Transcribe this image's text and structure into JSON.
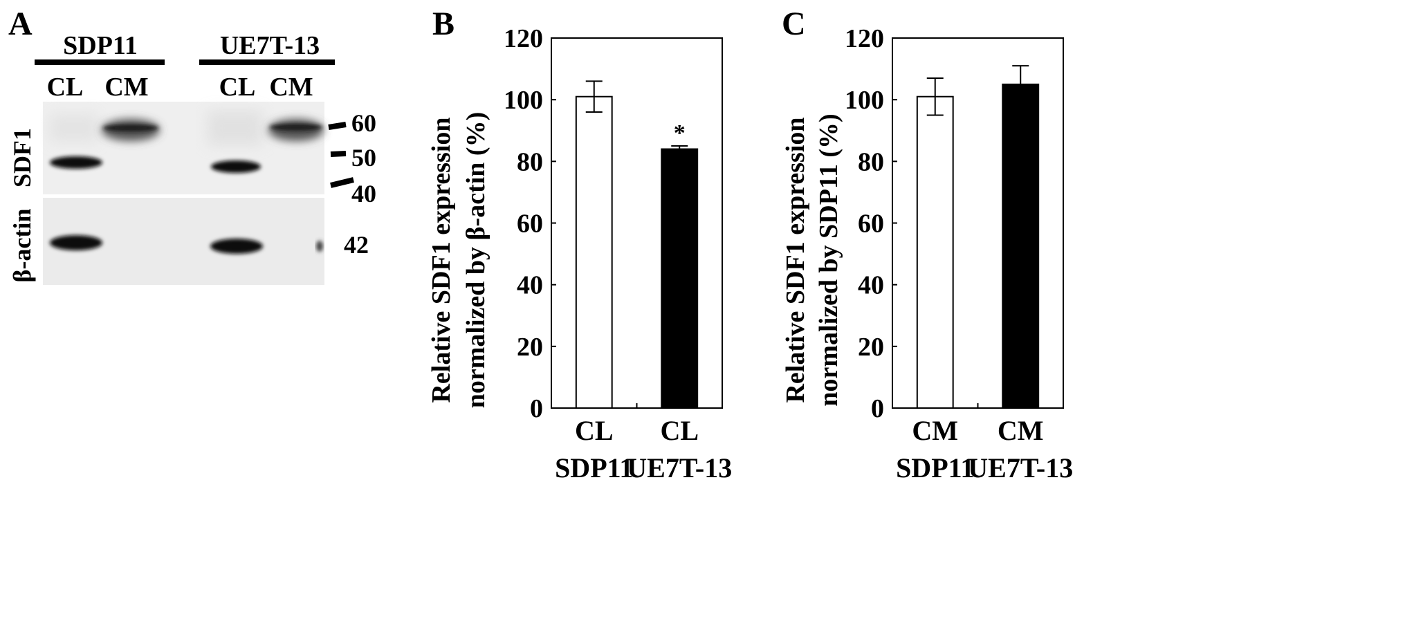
{
  "panels": {
    "A": {
      "letter": "A",
      "groups": [
        "SDP11",
        "UE7T-13"
      ],
      "lanes": [
        "CL",
        "CM",
        "CL",
        "CM"
      ],
      "row_labels": [
        "SDF1",
        "β-actin"
      ],
      "markers": [
        "60",
        "50",
        "40"
      ],
      "actin_marker": "42"
    },
    "B": {
      "letter": "B"
    },
    "C": {
      "letter": "C"
    }
  },
  "chart_data": [
    {
      "panel": "B",
      "type": "bar",
      "ylabel_lines": [
        "Relative SDF1 expression",
        "normalized by  β-actin  (%)"
      ],
      "categories": [
        [
          "CL",
          "SDP11"
        ],
        [
          "CL",
          "UE7T-13"
        ]
      ],
      "values": [
        101,
        84
      ],
      "errors": [
        5,
        1
      ],
      "bar_colors": [
        "#ffffff",
        "#000000"
      ],
      "annotations": [
        "",
        "*"
      ],
      "ylim": [
        0,
        120
      ],
      "yticks": [
        0,
        20,
        40,
        60,
        80,
        100,
        120
      ],
      "grid": false
    },
    {
      "panel": "C",
      "type": "bar",
      "ylabel_lines": [
        "Relative SDF1 expression",
        "normalized by SDP11 (%)"
      ],
      "categories": [
        [
          "CM",
          "SDP11"
        ],
        [
          "CM",
          "UE7T-13"
        ]
      ],
      "values": [
        101,
        105
      ],
      "errors": [
        6,
        6
      ],
      "bar_colors": [
        "#ffffff",
        "#000000"
      ],
      "annotations": [
        "",
        ""
      ],
      "ylim": [
        0,
        120
      ],
      "yticks": [
        0,
        20,
        40,
        60,
        80,
        100,
        120
      ],
      "grid": false
    }
  ]
}
